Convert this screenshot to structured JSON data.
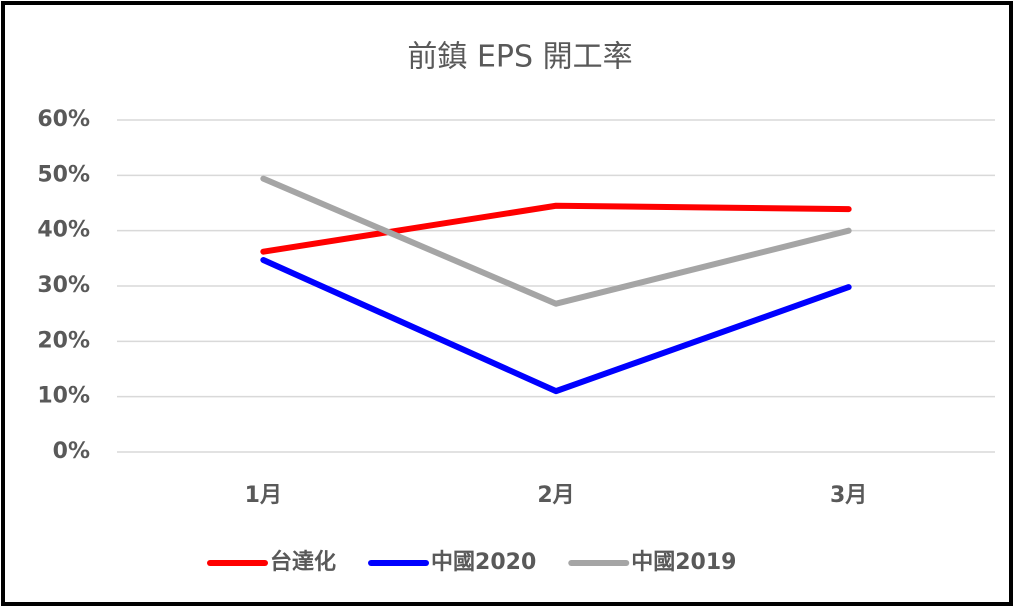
{
  "chart_data": {
    "type": "line",
    "title": "前鎮 EPS 開工率",
    "categories": [
      "1月",
      "2月",
      "3月"
    ],
    "series": [
      {
        "name": "台達化",
        "color": "#ff0000",
        "values": [
          36.2,
          44.5,
          43.9
        ]
      },
      {
        "name": "中國2020",
        "color": "#0000ff",
        "values": [
          34.7,
          11,
          29.8
        ]
      },
      {
        "name": "中國2019",
        "color": "#a5a5a5",
        "values": [
          49.4,
          26.8,
          40
        ]
      }
    ],
    "ylim": [
      0,
      60
    ],
    "yticks": [
      {
        "value": 0,
        "label": "0%"
      },
      {
        "value": 10,
        "label": "10%"
      },
      {
        "value": 20,
        "label": "20%"
      },
      {
        "value": 30,
        "label": "30%"
      },
      {
        "value": 40,
        "label": "40%"
      },
      {
        "value": 50,
        "label": "50%"
      },
      {
        "value": 60,
        "label": "60%"
      }
    ],
    "grid": true,
    "legend": "bottom"
  }
}
